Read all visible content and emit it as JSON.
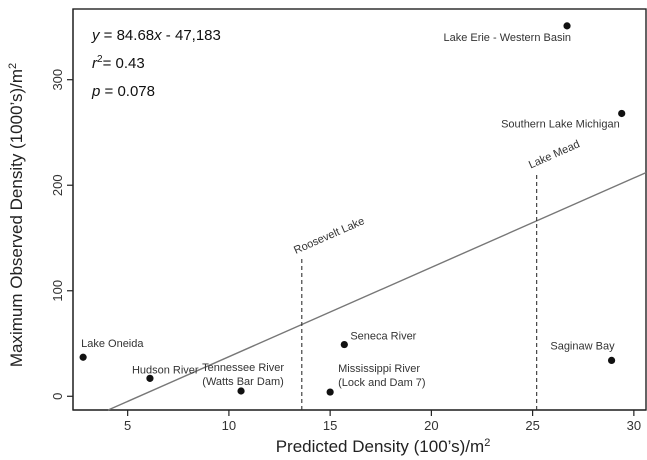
{
  "chart_data": {
    "type": "scatter",
    "xlabel": "Predicted Density (100's)/m²",
    "ylabel": "Maximum Observed Density (1000's)/m²",
    "xlim": [
      2.3,
      30.6
    ],
    "ylim": [
      -13,
      367
    ],
    "xticks": [
      5,
      10,
      15,
      20,
      25,
      30
    ],
    "yticks": [
      0,
      100,
      200,
      300
    ],
    "grid": false,
    "points": [
      {
        "x": 2.8,
        "y": 37,
        "label": "Lake Oneida"
      },
      {
        "x": 6.1,
        "y": 17,
        "label": "Hudson River"
      },
      {
        "x": 10.6,
        "y": 5,
        "label": "Tennessee River\n(Watts Bar Dam)"
      },
      {
        "x": 15.0,
        "y": 4,
        "label": "Mississippi River\n(Lock and Dam 7)"
      },
      {
        "x": 15.7,
        "y": 49,
        "label": "Seneca River"
      },
      {
        "x": 26.7,
        "y": 351,
        "label": "Lake Erie - Western Basin"
      },
      {
        "x": 29.4,
        "y": 268,
        "label": "Southern Lake Michigan"
      },
      {
        "x": 28.9,
        "y": 34,
        "label": "Saginaw Bay"
      }
    ],
    "regression": {
      "slope": 8.468,
      "intercept": -47.183,
      "stats": [
        "y = 84.68x - 47,183",
        "r² = 0.43",
        "p = 0.078"
      ]
    },
    "reference_lines": [
      {
        "x": 13.6,
        "y_top": 131,
        "label": "Roosevelt Lake"
      },
      {
        "x": 25.2,
        "y_top": 212,
        "label": "Lake Mead"
      }
    ]
  }
}
